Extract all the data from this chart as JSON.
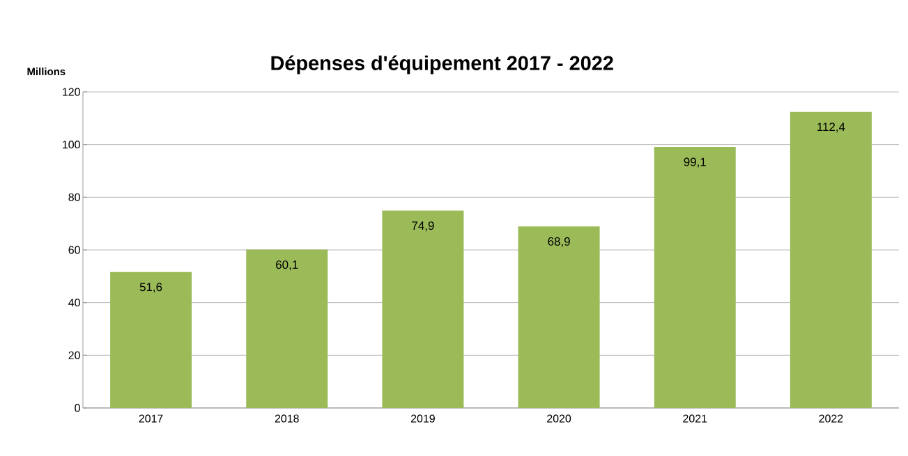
{
  "chart_data": {
    "type": "bar",
    "title": "Dépenses d'équipement 2017 - 2022",
    "ylabel": "Millions",
    "categories": [
      "2017",
      "2018",
      "2019",
      "2020",
      "2021",
      "2022"
    ],
    "values": [
      51.6,
      60.1,
      74.9,
      68.9,
      99.1,
      112.4
    ],
    "value_labels": [
      "51,6",
      "60,1",
      "74,9",
      "68,9",
      "99,1",
      "112,4"
    ],
    "color": "#9bbb59",
    "ylim": [
      0,
      120
    ],
    "yticks": [
      0,
      20,
      40,
      60,
      80,
      100,
      120
    ],
    "grid": "y"
  }
}
